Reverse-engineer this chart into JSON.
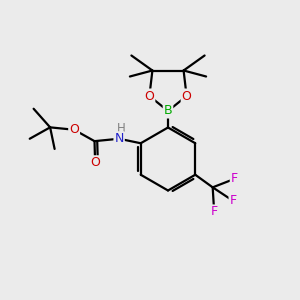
{
  "background_color": "#ebebeb",
  "atom_colors": {
    "C": "#000000",
    "H": "#808080",
    "N": "#2222cc",
    "O": "#cc0000",
    "B": "#00aa00",
    "F": "#cc00cc"
  },
  "bond_color": "#000000",
  "bond_width": 1.6,
  "figsize": [
    3.0,
    3.0
  ],
  "dpi": 100,
  "xlim": [
    0,
    10
  ],
  "ylim": [
    0,
    10
  ]
}
